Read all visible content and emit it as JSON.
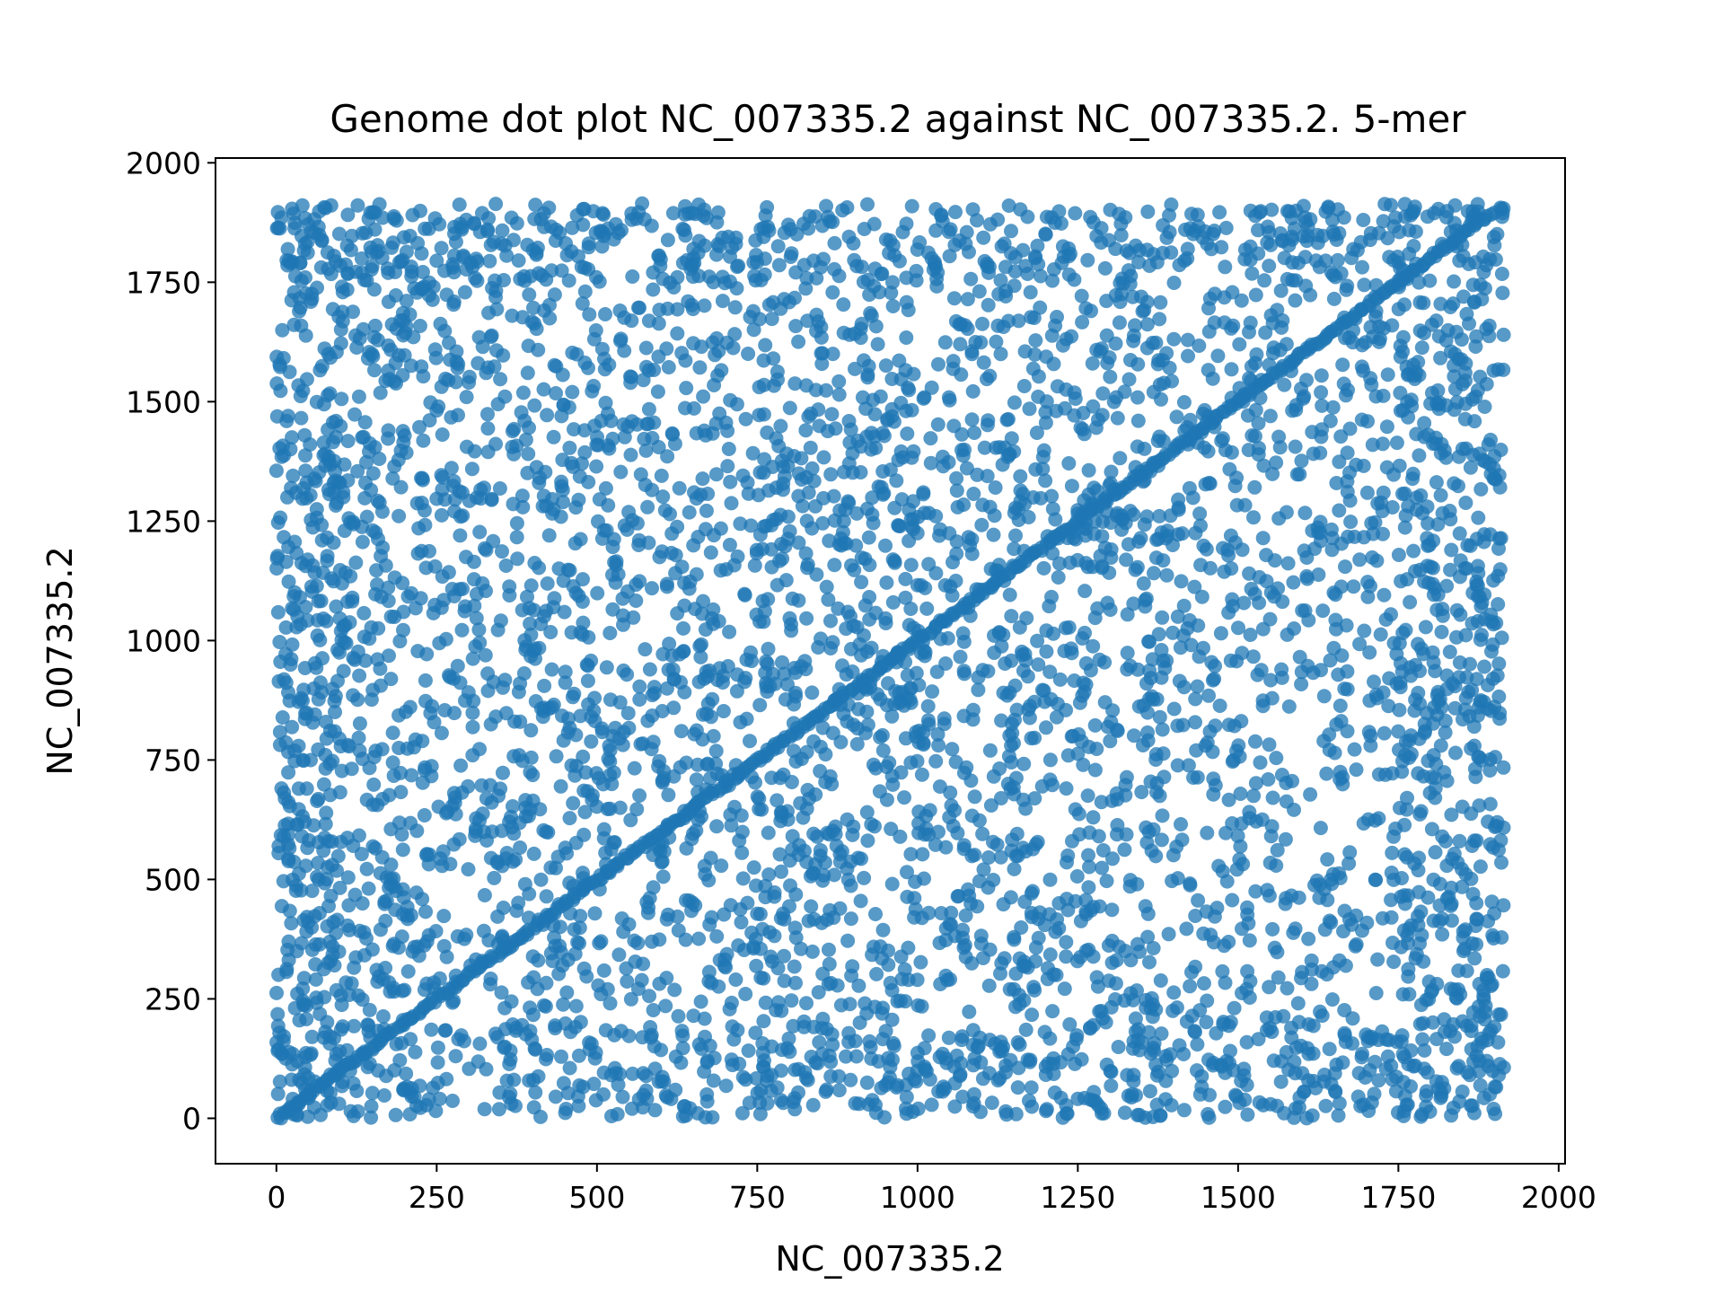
{
  "chart_data": {
    "type": "scatter",
    "title": "Genome dot plot NC_007335.2 against NC_007335.2. 5-mer",
    "xlabel": "NC_007335.2",
    "ylabel": "NC_007335.2",
    "xlim": [
      -95,
      2010
    ],
    "ylim": [
      -95,
      2010
    ],
    "xticks": [
      0,
      250,
      500,
      750,
      1000,
      1250,
      1500,
      1750,
      2000
    ],
    "yticks": [
      0,
      250,
      500,
      750,
      1000,
      1250,
      1500,
      1750,
      2000
    ],
    "xticklabels": [
      "0",
      "250",
      "500",
      "750",
      "1000",
      "1250",
      "1500",
      "1750",
      "2000"
    ],
    "yticklabels": [
      "0",
      "250",
      "500",
      "750",
      "1000",
      "1250",
      "1500",
      "1750",
      "2000"
    ],
    "point_color": "#1f77b4",
    "point_alpha": 0.75,
    "sequence_length": 1915,
    "grid": false,
    "legend": "none",
    "series": [
      {
        "description_of_points": "5-mer matches",
        "diagonal": [
          [
            0,
            0
          ],
          [
            100,
            100
          ],
          [
            200,
            200
          ],
          [
            300,
            300
          ],
          [
            400,
            400
          ],
          [
            500,
            500
          ],
          [
            600,
            600
          ],
          [
            700,
            700
          ],
          [
            800,
            800
          ],
          [
            900,
            900
          ],
          [
            1000,
            1000
          ],
          [
            1100,
            1100
          ],
          [
            1200,
            1200
          ],
          [
            1300,
            1300
          ],
          [
            1400,
            1400
          ],
          [
            1500,
            1500
          ],
          [
            1600,
            1600
          ],
          [
            1700,
            1700
          ],
          [
            1800,
            1800
          ],
          [
            1900,
            1900
          ]
        ],
        "dense_clusters": [
          {
            "x": [
              0,
              200
            ],
            "y": [
              0,
              1915
            ]
          },
          {
            "x": [
              0,
              1915
            ],
            "y": [
              0,
              200
            ]
          },
          {
            "x": [
              730,
              1020
            ],
            "y": [
              780,
              1000
            ]
          },
          {
            "x": [
              730,
              1020
            ],
            "y": [
              1150,
              1400
            ]
          },
          {
            "x": [
              1150,
              1400
            ],
            "y": [
              780,
              1000
            ]
          },
          {
            "x": [
              1150,
              1400
            ],
            "y": [
              1150,
              1400
            ]
          },
          {
            "x": [
              1750,
              1915
            ],
            "y": [
              0,
              1915
            ]
          },
          {
            "x": [
              0,
              1915
            ],
            "y": [
              1750,
              1915
            ]
          }
        ]
      }
    ]
  }
}
